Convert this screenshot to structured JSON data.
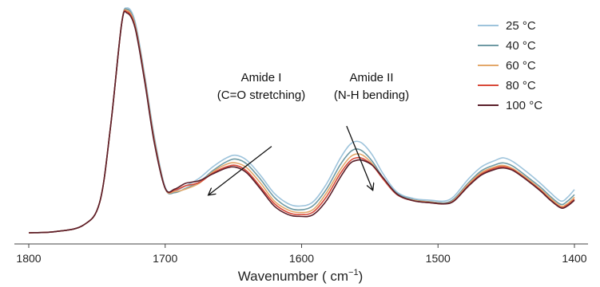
{
  "chart_data": {
    "type": "line",
    "title": "",
    "xlabel": "Wavenumber",
    "xlabel_unit_prefix": "(",
    "xlabel_unit": "cm",
    "xlabel_unit_exp": "−1",
    "xlabel_unit_suffix": ")",
    "ylabel": "",
    "x_reversed": true,
    "xlim": [
      1805,
      1395
    ],
    "ylim": [
      0,
      1.0
    ],
    "grid": false,
    "legend_position": "top-right",
    "x_ticks": [
      1800,
      1700,
      1600,
      1500,
      1400
    ],
    "x_tick_labels": [
      "1800",
      "1700",
      "1600",
      "1500",
      "1400"
    ],
    "series": [
      {
        "name": "25 °C",
        "color": "#9ec4dc",
        "points": [
          [
            1800,
            0.1
          ],
          [
            1780,
            0.105
          ],
          [
            1760,
            0.13
          ],
          [
            1748,
            0.22
          ],
          [
            1740,
            0.52
          ],
          [
            1732,
            0.92
          ],
          [
            1728,
            0.985
          ],
          [
            1722,
            0.93
          ],
          [
            1715,
            0.72
          ],
          [
            1708,
            0.48
          ],
          [
            1700,
            0.28
          ],
          [
            1693,
            0.265
          ],
          [
            1685,
            0.285
          ],
          [
            1675,
            0.315
          ],
          [
            1665,
            0.36
          ],
          [
            1655,
            0.395
          ],
          [
            1648,
            0.405
          ],
          [
            1640,
            0.385
          ],
          [
            1630,
            0.325
          ],
          [
            1620,
            0.255
          ],
          [
            1610,
            0.215
          ],
          [
            1602,
            0.205
          ],
          [
            1592,
            0.22
          ],
          [
            1582,
            0.29
          ],
          [
            1572,
            0.39
          ],
          [
            1565,
            0.445
          ],
          [
            1560,
            0.46
          ],
          [
            1555,
            0.45
          ],
          [
            1548,
            0.405
          ],
          [
            1540,
            0.33
          ],
          [
            1530,
            0.26
          ],
          [
            1518,
            0.235
          ],
          [
            1505,
            0.228
          ],
          [
            1495,
            0.225
          ],
          [
            1488,
            0.245
          ],
          [
            1478,
            0.31
          ],
          [
            1468,
            0.36
          ],
          [
            1458,
            0.385
          ],
          [
            1452,
            0.395
          ],
          [
            1445,
            0.38
          ],
          [
            1435,
            0.34
          ],
          [
            1425,
            0.295
          ],
          [
            1418,
            0.26
          ],
          [
            1410,
            0.225
          ],
          [
            1405,
            0.24
          ],
          [
            1400,
            0.27
          ]
        ]
      },
      {
        "name": "40 °C",
        "color": "#6f9aa4",
        "points": [
          [
            1800,
            0.1
          ],
          [
            1780,
            0.105
          ],
          [
            1760,
            0.13
          ],
          [
            1748,
            0.22
          ],
          [
            1740,
            0.52
          ],
          [
            1732,
            0.92
          ],
          [
            1728,
            0.98
          ],
          [
            1722,
            0.92
          ],
          [
            1715,
            0.71
          ],
          [
            1708,
            0.47
          ],
          [
            1700,
            0.275
          ],
          [
            1693,
            0.258
          ],
          [
            1685,
            0.275
          ],
          [
            1675,
            0.3
          ],
          [
            1665,
            0.345
          ],
          [
            1655,
            0.38
          ],
          [
            1648,
            0.39
          ],
          [
            1640,
            0.37
          ],
          [
            1630,
            0.31
          ],
          [
            1620,
            0.24
          ],
          [
            1610,
            0.2
          ],
          [
            1602,
            0.19
          ],
          [
            1592,
            0.205
          ],
          [
            1582,
            0.27
          ],
          [
            1572,
            0.365
          ],
          [
            1565,
            0.415
          ],
          [
            1560,
            0.43
          ],
          [
            1555,
            0.42
          ],
          [
            1548,
            0.38
          ],
          [
            1540,
            0.315
          ],
          [
            1530,
            0.255
          ],
          [
            1518,
            0.23
          ],
          [
            1505,
            0.222
          ],
          [
            1495,
            0.218
          ],
          [
            1488,
            0.235
          ],
          [
            1478,
            0.295
          ],
          [
            1468,
            0.345
          ],
          [
            1458,
            0.368
          ],
          [
            1452,
            0.375
          ],
          [
            1445,
            0.362
          ],
          [
            1435,
            0.322
          ],
          [
            1425,
            0.28
          ],
          [
            1418,
            0.245
          ],
          [
            1410,
            0.212
          ],
          [
            1405,
            0.225
          ],
          [
            1400,
            0.25
          ]
        ]
      },
      {
        "name": "60 °C",
        "color": "#e3a86a",
        "points": [
          [
            1800,
            0.1
          ],
          [
            1780,
            0.105
          ],
          [
            1760,
            0.13
          ],
          [
            1748,
            0.22
          ],
          [
            1740,
            0.52
          ],
          [
            1732,
            0.92
          ],
          [
            1728,
            0.975
          ],
          [
            1722,
            0.915
          ],
          [
            1715,
            0.705
          ],
          [
            1708,
            0.465
          ],
          [
            1700,
            0.275
          ],
          [
            1693,
            0.262
          ],
          [
            1685,
            0.272
          ],
          [
            1675,
            0.295
          ],
          [
            1665,
            0.34
          ],
          [
            1655,
            0.37
          ],
          [
            1648,
            0.375
          ],
          [
            1640,
            0.355
          ],
          [
            1630,
            0.295
          ],
          [
            1620,
            0.225
          ],
          [
            1610,
            0.19
          ],
          [
            1602,
            0.18
          ],
          [
            1592,
            0.19
          ],
          [
            1582,
            0.255
          ],
          [
            1572,
            0.345
          ],
          [
            1565,
            0.395
          ],
          [
            1560,
            0.41
          ],
          [
            1555,
            0.405
          ],
          [
            1548,
            0.37
          ],
          [
            1540,
            0.31
          ],
          [
            1530,
            0.25
          ],
          [
            1518,
            0.228
          ],
          [
            1505,
            0.22
          ],
          [
            1495,
            0.215
          ],
          [
            1488,
            0.23
          ],
          [
            1478,
            0.29
          ],
          [
            1468,
            0.338
          ],
          [
            1458,
            0.36
          ],
          [
            1452,
            0.365
          ],
          [
            1445,
            0.352
          ],
          [
            1435,
            0.315
          ],
          [
            1425,
            0.272
          ],
          [
            1418,
            0.238
          ],
          [
            1410,
            0.205
          ],
          [
            1405,
            0.215
          ],
          [
            1400,
            0.24
          ]
        ]
      },
      {
        "name": "80 °C",
        "color": "#d94a3a",
        "points": [
          [
            1800,
            0.1
          ],
          [
            1780,
            0.105
          ],
          [
            1760,
            0.13
          ],
          [
            1748,
            0.22
          ],
          [
            1740,
            0.52
          ],
          [
            1732,
            0.92
          ],
          [
            1728,
            0.97
          ],
          [
            1722,
            0.91
          ],
          [
            1715,
            0.7
          ],
          [
            1708,
            0.46
          ],
          [
            1700,
            0.275
          ],
          [
            1693,
            0.268
          ],
          [
            1685,
            0.285
          ],
          [
            1675,
            0.298
          ],
          [
            1665,
            0.335
          ],
          [
            1655,
            0.36
          ],
          [
            1648,
            0.365
          ],
          [
            1640,
            0.342
          ],
          [
            1630,
            0.28
          ],
          [
            1620,
            0.215
          ],
          [
            1610,
            0.18
          ],
          [
            1602,
            0.172
          ],
          [
            1592,
            0.18
          ],
          [
            1582,
            0.24
          ],
          [
            1572,
            0.33
          ],
          [
            1565,
            0.38
          ],
          [
            1560,
            0.395
          ],
          [
            1555,
            0.392
          ],
          [
            1548,
            0.365
          ],
          [
            1540,
            0.31
          ],
          [
            1530,
            0.25
          ],
          [
            1518,
            0.226
          ],
          [
            1505,
            0.218
          ],
          [
            1495,
            0.214
          ],
          [
            1488,
            0.228
          ],
          [
            1478,
            0.285
          ],
          [
            1468,
            0.332
          ],
          [
            1458,
            0.355
          ],
          [
            1452,
            0.36
          ],
          [
            1445,
            0.348
          ],
          [
            1435,
            0.31
          ],
          [
            1425,
            0.268
          ],
          [
            1418,
            0.232
          ],
          [
            1410,
            0.2
          ],
          [
            1405,
            0.21
          ],
          [
            1400,
            0.232
          ]
        ]
      },
      {
        "name": "100 °C",
        "color": "#5a1f2a",
        "points": [
          [
            1800,
            0.1
          ],
          [
            1780,
            0.105
          ],
          [
            1760,
            0.13
          ],
          [
            1748,
            0.22
          ],
          [
            1740,
            0.52
          ],
          [
            1732,
            0.92
          ],
          [
            1728,
            0.965
          ],
          [
            1722,
            0.905
          ],
          [
            1715,
            0.695
          ],
          [
            1708,
            0.455
          ],
          [
            1700,
            0.275
          ],
          [
            1693,
            0.272
          ],
          [
            1685,
            0.295
          ],
          [
            1675,
            0.305
          ],
          [
            1665,
            0.332
          ],
          [
            1655,
            0.355
          ],
          [
            1648,
            0.358
          ],
          [
            1640,
            0.335
          ],
          [
            1630,
            0.272
          ],
          [
            1620,
            0.205
          ],
          [
            1610,
            0.172
          ],
          [
            1602,
            0.165
          ],
          [
            1592,
            0.17
          ],
          [
            1582,
            0.225
          ],
          [
            1572,
            0.315
          ],
          [
            1565,
            0.37
          ],
          [
            1560,
            0.385
          ],
          [
            1555,
            0.385
          ],
          [
            1548,
            0.365
          ],
          [
            1540,
            0.315
          ],
          [
            1530,
            0.252
          ],
          [
            1518,
            0.226
          ],
          [
            1505,
            0.218
          ],
          [
            1495,
            0.214
          ],
          [
            1488,
            0.226
          ],
          [
            1478,
            0.282
          ],
          [
            1468,
            0.328
          ],
          [
            1458,
            0.35
          ],
          [
            1452,
            0.355
          ],
          [
            1445,
            0.345
          ],
          [
            1435,
            0.308
          ],
          [
            1425,
            0.265
          ],
          [
            1418,
            0.23
          ],
          [
            1410,
            0.198
          ],
          [
            1405,
            0.206
          ],
          [
            1400,
            0.228
          ]
        ]
      }
    ],
    "annotations": [
      {
        "lines": [
          "Amide I",
          "(C=O stretching)"
        ],
        "arrow_from": [
          1622,
          0.44
        ],
        "arrow_to": [
          1668,
          0.25
        ]
      },
      {
        "lines": [
          "Amide II",
          "(N-H bending)"
        ],
        "arrow_from": [
          1567,
          0.52
        ],
        "arrow_to": [
          1548,
          0.27
        ]
      }
    ]
  }
}
